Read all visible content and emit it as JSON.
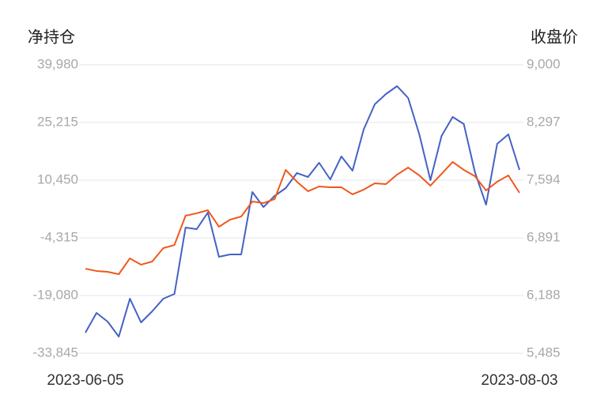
{
  "chart_data": {
    "type": "line",
    "y_label": "净持仓",
    "y2_label": "收盘价",
    "categories": [
      "2023-06-05",
      null,
      null,
      null,
      null,
      null,
      null,
      null,
      null,
      null,
      null,
      null,
      null,
      null,
      null,
      null,
      null,
      null,
      null,
      null,
      null,
      null,
      null,
      null,
      null,
      null,
      null,
      null,
      null,
      null,
      null,
      null,
      null,
      null,
      null,
      null,
      null,
      null,
      null,
      "2023-08-03"
    ],
    "series": [
      {
        "name": "净持仓",
        "color": "#4462c4",
        "axis": "y",
        "values": [
          -28586,
          -23530,
          -25755,
          -29597,
          -19889,
          -25957,
          -23125,
          -19889,
          -18675,
          -1686,
          -2090,
          2157,
          -9169,
          -8562,
          -8562,
          7416,
          3573,
          6405,
          8427,
          12270,
          11259,
          14900,
          10652,
          16518,
          12877,
          23395,
          29867,
          32496,
          34519,
          31485,
          22181,
          10450,
          21777,
          26631,
          24810,
          12473,
          4180,
          19754,
          22181,
          13079
        ]
      },
      {
        "name": "收盘价",
        "color": "#f0581c",
        "axis": "y2",
        "values": [
          6515,
          6487,
          6477,
          6448,
          6641,
          6564,
          6602,
          6766,
          6804,
          7161,
          7190,
          7228,
          7026,
          7113,
          7151,
          7334,
          7315,
          7363,
          7719,
          7575,
          7459,
          7517,
          7507,
          7507,
          7421,
          7478,
          7555,
          7546,
          7661,
          7748,
          7652,
          7527,
          7671,
          7816,
          7719,
          7642,
          7469,
          7575,
          7652,
          7440
        ]
      }
    ],
    "ylim": [
      -33845,
      39980
    ],
    "yticks": [
      {
        "value": -33845,
        "label": "-33,845"
      },
      {
        "value": -19080,
        "label": "-19,080"
      },
      {
        "value": -4315,
        "label": "-4,315"
      },
      {
        "value": 10450,
        "label": "10,450"
      },
      {
        "value": 25215,
        "label": "25,215"
      },
      {
        "value": 39980,
        "label": "39,980"
      }
    ],
    "y2lim": [
      5485,
      9000
    ],
    "y2ticks": [
      {
        "value": 5485,
        "label": "5,485"
      },
      {
        "value": 6188,
        "label": "6,188"
      },
      {
        "value": 6891,
        "label": "6,891"
      },
      {
        "value": 7594,
        "label": "7,594"
      },
      {
        "value": 8297,
        "label": "8,297"
      },
      {
        "value": 9000,
        "label": "9,000"
      }
    ],
    "grid": true
  }
}
